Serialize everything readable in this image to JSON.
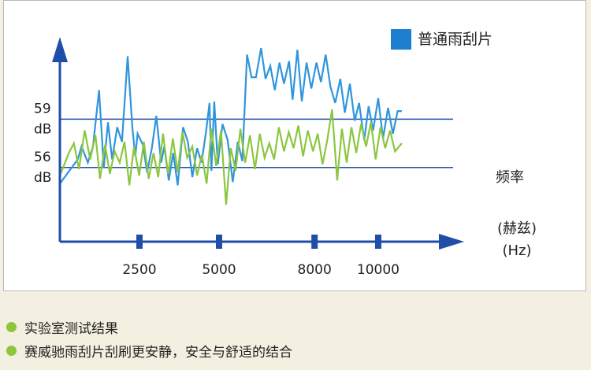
{
  "chart_data": {
    "type": "line",
    "title": "",
    "legend": {
      "position": "top-right",
      "entries": [
        {
          "label": "普通雨刮片",
          "color": "#1e7fd0"
        }
      ]
    },
    "x_unit_label_1": "频率",
    "x_unit_label_2": "(赫兹)",
    "x_unit_label_3": "(Hz)",
    "ylabel": "dB",
    "ylim": [
      51.4,
      63.8
    ],
    "xlim": [
      0,
      12600
    ],
    "x_ticks": [
      {
        "value": 2500,
        "label": "2500"
      },
      {
        "value": 5000,
        "label": "5000"
      },
      {
        "value": 8000,
        "label": "8000"
      },
      {
        "value": 10000,
        "label": "10000"
      }
    ],
    "reference_lines": [
      {
        "value": 59,
        "label_value": "59",
        "label_unit": "dB"
      },
      {
        "value": 56,
        "label_value": "56",
        "label_unit": "dB"
      }
    ],
    "series": [
      {
        "name": "普通雨刮片",
        "color": "#2f95dc",
        "x": [
          0,
          560,
          680,
          880,
          1040,
          1230,
          1380,
          1510,
          1640,
          1800,
          1950,
          2130,
          2280,
          2370,
          2440,
          2610,
          2740,
          2890,
          3030,
          3180,
          3280,
          3420,
          3560,
          3700,
          3870,
          4020,
          4160,
          4310,
          4450,
          4590,
          4700,
          4760,
          4850,
          4960,
          5110,
          5270,
          5430,
          5590,
          5730,
          5880,
          6020,
          6160,
          6320,
          6460,
          6610,
          6750,
          6900,
          7040,
          7200,
          7310,
          7460,
          7600,
          7750,
          7900,
          8060,
          8200,
          8350,
          8500,
          8650,
          8810,
          8950,
          9110,
          9260,
          9400,
          9560,
          9700,
          9840,
          10000,
          10150,
          10310,
          10460,
          10610,
          10740
        ],
        "y": [
          55.0,
          56.5,
          57.3,
          56.3,
          57.3,
          60.8,
          56.0,
          58.8,
          56.5,
          58.5,
          57.6,
          62.9,
          58.4,
          56.7,
          58.1,
          57.4,
          55.7,
          57.2,
          59.2,
          56.3,
          57.3,
          55.2,
          56.9,
          54.9,
          58.5,
          57.6,
          55.4,
          57.2,
          56.3,
          58.2,
          60.0,
          55.8,
          60.1,
          56.2,
          58.7,
          57.7,
          55.1,
          57.6,
          56.4,
          63.0,
          61.6,
          61.6,
          63.4,
          61.5,
          62.3,
          60.8,
          62.5,
          61.2,
          62.6,
          60.2,
          63.3,
          60.1,
          62.5,
          60.9,
          62.5,
          61.3,
          63.0,
          61.0,
          60.0,
          61.5,
          59.4,
          61.2,
          58.9,
          60.0,
          57.7,
          59.8,
          58.3,
          60.3,
          57.8,
          59.7,
          58.1,
          59.5,
          59.5
        ]
      },
      {
        "name": "",
        "color": "#8cc63f",
        "x": [
          0,
          140,
          280,
          440,
          600,
          780,
          950,
          1120,
          1260,
          1420,
          1570,
          1720,
          1880,
          2030,
          2180,
          2330,
          2490,
          2640,
          2790,
          2940,
          3090,
          3240,
          3400,
          3550,
          3700,
          3850,
          4000,
          4160,
          4310,
          4460,
          4610,
          4760,
          4910,
          5060,
          5220,
          5370,
          5520,
          5670,
          5820,
          5970,
          6130,
          6280,
          6430,
          6580,
          6730,
          6880,
          7040,
          7190,
          7340,
          7490,
          7640,
          7790,
          7950,
          8100,
          8250,
          8400,
          8550,
          8710,
          8860,
          9010,
          9160,
          9310,
          9460,
          9620,
          9770,
          9920,
          10070,
          10220,
          10370,
          10530,
          10740
        ],
        "y": [
          55.5,
          56.2,
          56.9,
          57.5,
          55.9,
          58.3,
          56.5,
          58.0,
          55.3,
          57.4,
          55.6,
          57.0,
          56.3,
          57.6,
          54.9,
          57.3,
          55.5,
          57.6,
          55.3,
          56.9,
          55.4,
          58.1,
          55.6,
          57.8,
          55.7,
          58.2,
          56.6,
          57.3,
          55.5,
          56.8,
          55.0,
          58.4,
          56.1,
          58.3,
          53.7,
          57.2,
          55.8,
          58.4,
          56.3,
          58.0,
          55.9,
          58.1,
          56.6,
          57.5,
          56.5,
          58.5,
          57.0,
          58.2,
          57.2,
          58.6,
          56.7,
          58.3,
          57.0,
          58.1,
          56.2,
          57.7,
          59.6,
          55.2,
          58.4,
          56.3,
          58.5,
          56.9,
          58.7,
          57.3,
          58.8,
          56.5,
          58.5,
          57.2,
          58.3,
          57.0,
          57.5
        ]
      }
    ]
  },
  "notes": [
    "实验室测试结果",
    "赛威驰雨刮片刮刷更安静，安全与舒适的结合"
  ],
  "colors": {
    "axis": "#1f4ea8",
    "ref_line": "#1f4ea8",
    "tick_mark": "#1f4ea8",
    "bullet": "#8cc63f"
  }
}
